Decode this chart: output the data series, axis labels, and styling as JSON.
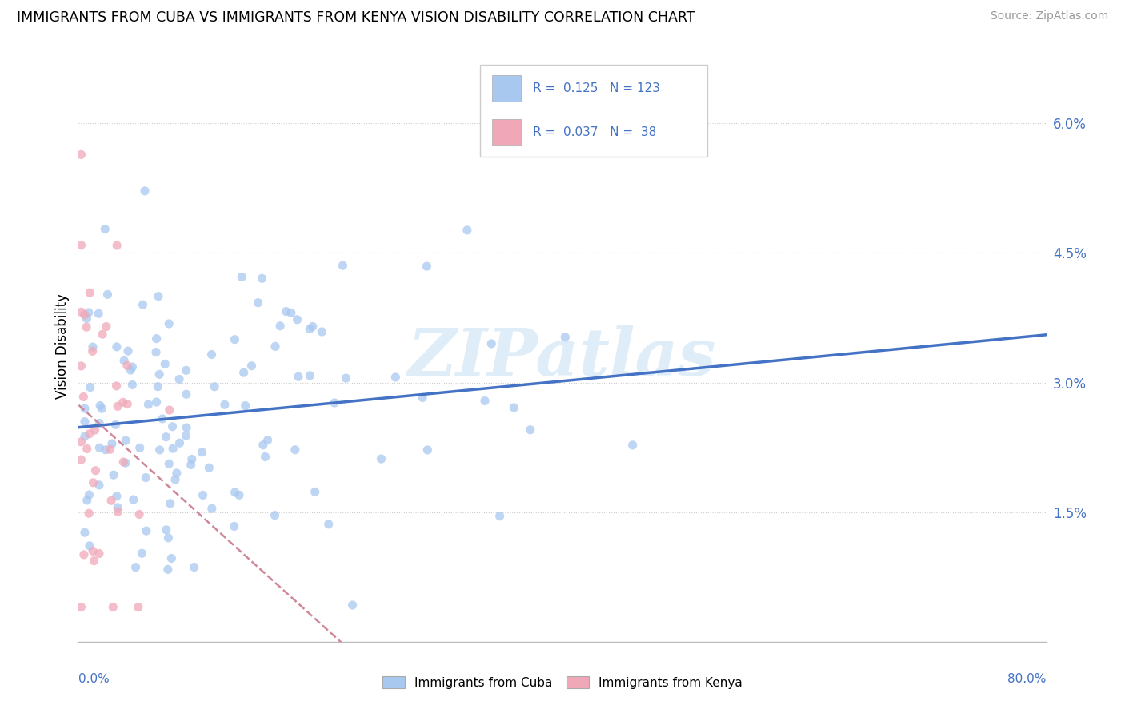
{
  "title": "IMMIGRANTS FROM CUBA VS IMMIGRANTS FROM KENYA VISION DISABILITY CORRELATION CHART",
  "source": "Source: ZipAtlas.com",
  "ylabel": "Vision Disability",
  "watermark": "ZIPatlas",
  "R_cuba": 0.125,
  "N_cuba": 123,
  "R_kenya": 0.037,
  "N_kenya": 38,
  "color_cuba": "#a8c8f0",
  "color_kenya": "#f0a8b8",
  "color_text_blue": "#4472C4",
  "color_line_cuba": "#4472C4",
  "color_line_kenya": "#d08898",
  "xlim": [
    0.0,
    0.8
  ],
  "ylim": [
    0.0,
    0.0685
  ],
  "yticks": [
    0.015,
    0.03,
    0.045,
    0.06
  ],
  "ytick_labels": [
    "1.5%",
    "3.0%",
    "4.5%",
    "6.0%"
  ],
  "legend_R_cuba": "0.125",
  "legend_N_cuba": "123",
  "legend_R_kenya": "0.037",
  "legend_N_kenya": "38"
}
